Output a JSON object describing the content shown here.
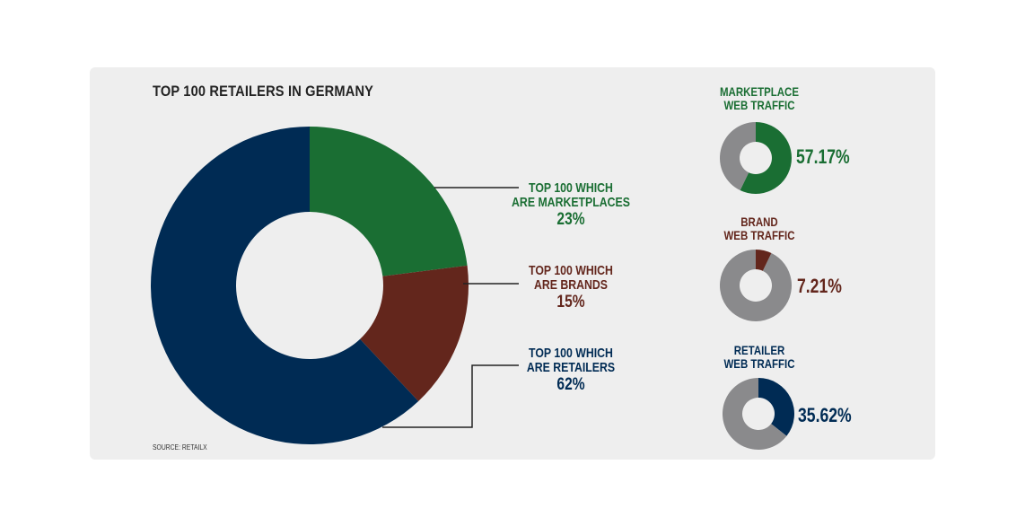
{
  "colors": {
    "marketplaces": "#1a6e33",
    "brands": "#63261c",
    "retailers": "#002b54",
    "grey": "#8a8a8c",
    "hole": "#eeeeee"
  },
  "title": "TOP 100 RETAILERS IN GERMANY",
  "source": "SOURCE: RETAILX",
  "chart_data": [
    {
      "type": "pie",
      "title": "TOP 100 RETAILERS IN GERMANY",
      "donut": true,
      "slices": [
        {
          "key": "marketplaces",
          "label_line1": "TOP 100 WHICH",
          "label_line2": "ARE MARKETPLACES",
          "value": 23,
          "value_label": "23%"
        },
        {
          "key": "brands",
          "label_line1": "TOP 100 WHICH",
          "label_line2": "ARE BRANDS",
          "value": 15,
          "value_label": "15%"
        },
        {
          "key": "retailers",
          "label_line1": "TOP 100 WHICH",
          "label_line2": "ARE RETAILERS",
          "value": 62,
          "value_label": "62%"
        }
      ]
    },
    {
      "type": "pie",
      "title_line1": "MARKETPLACE",
      "title_line2": "WEB TRAFFIC",
      "key": "marketplaces",
      "value": 57.17,
      "value_label": "57.17%"
    },
    {
      "type": "pie",
      "title_line1": "BRAND",
      "title_line2": "WEB TRAFFIC",
      "key": "brands",
      "value": 7.21,
      "value_label": "7.21%"
    },
    {
      "type": "pie",
      "title_line1": "RETAILER",
      "title_line2": "WEB TRAFFIC",
      "key": "retailers",
      "value": 35.62,
      "value_label": "35.62%"
    }
  ]
}
